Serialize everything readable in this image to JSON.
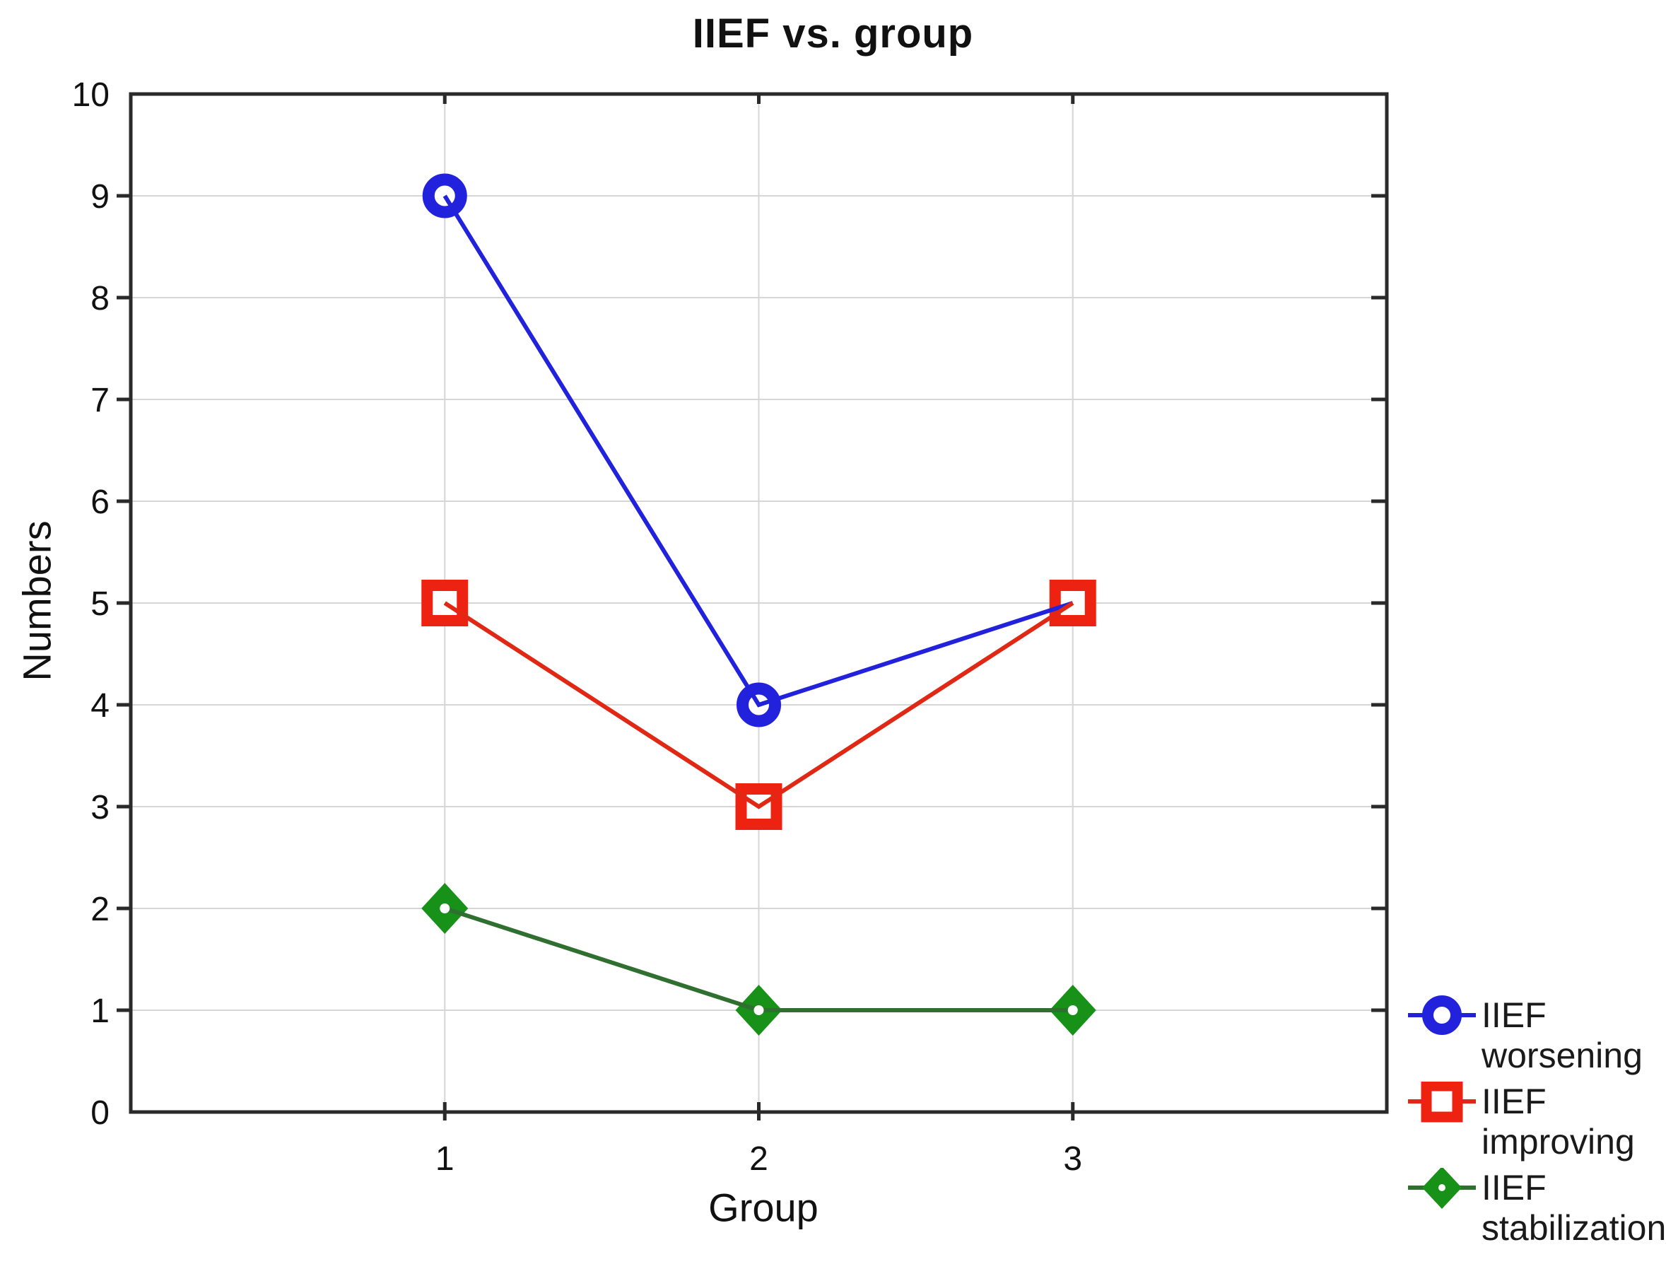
{
  "chart_data": {
    "type": "line",
    "title": "IIEF vs. group",
    "xlabel": "Group",
    "ylabel": "Numbers",
    "x": [
      1,
      2,
      3
    ],
    "xticks": [
      1,
      2,
      3
    ],
    "yticks": [
      0,
      1,
      2,
      3,
      4,
      5,
      6,
      7,
      8,
      9,
      10
    ],
    "xlim": [
      0,
      4
    ],
    "ylim": [
      0,
      10
    ],
    "grid": true,
    "legend_position": "bottom-right",
    "axis_color": "#2a2a2a",
    "grid_color": "#d6d6d6",
    "text_color": "#111111",
    "series": [
      {
        "name": "IIEF worsening",
        "legend_label": "IIEF\nworsening",
        "marker": "ring-circle",
        "color": "#2222dd",
        "line_color": "#2222dd",
        "values": [
          9,
          4,
          5
        ]
      },
      {
        "name": "IIEF improving",
        "legend_label": "IIEF\nimproving",
        "marker": "open-square",
        "color": "#ee2211",
        "line_color": "#e02815",
        "values": [
          5,
          3,
          5
        ]
      },
      {
        "name": "IIEF stabilization",
        "legend_label": "IIEF\nstabilization",
        "marker": "filled-diamond",
        "color": "#179117",
        "line_color": "#2f6f2f",
        "values": [
          2,
          1,
          1
        ]
      }
    ]
  }
}
